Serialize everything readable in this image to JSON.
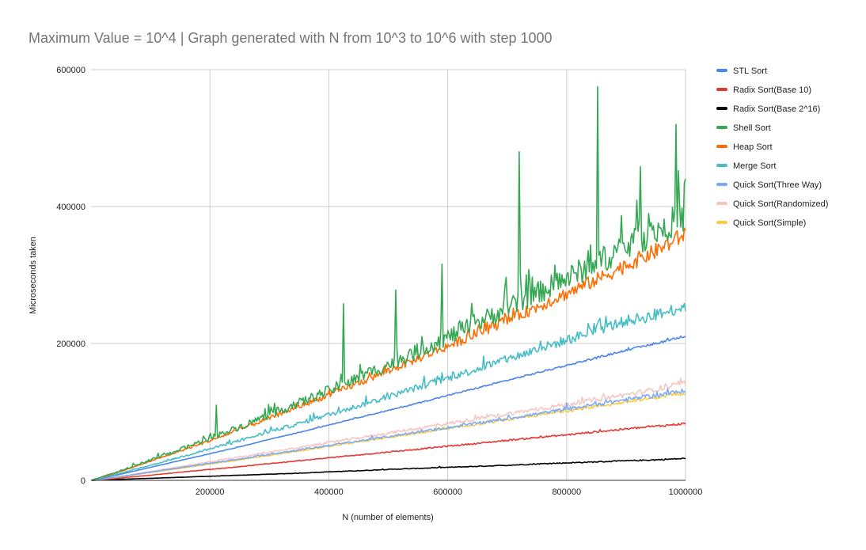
{
  "chart_data": {
    "type": "line",
    "title": "Maximum Value = 10^4      | Graph generated with N from 10^3 to 10^6 with step 1000",
    "xlabel": "N (number of elements)",
    "ylabel": "Microseconds taken",
    "xlim": [
      0,
      1000000
    ],
    "ylim": [
      0,
      600000
    ],
    "x_ticks": [
      200000,
      400000,
      600000,
      800000,
      1000000
    ],
    "x_tick_labels": [
      "200000",
      "400000",
      "600000",
      "800000",
      "1000000"
    ],
    "y_ticks": [
      0,
      200000,
      400000,
      600000
    ],
    "y_tick_labels": [
      "0",
      "200000",
      "400000",
      "600000"
    ],
    "grid": true,
    "legend_position": "right",
    "x": [
      1000,
      50000,
      100000,
      150000,
      200000,
      250000,
      300000,
      350000,
      400000,
      450000,
      500000,
      550000,
      600000,
      650000,
      700000,
      750000,
      800000,
      850000,
      900000,
      950000,
      1000000
    ],
    "series": [
      {
        "name": "STL Sort",
        "color": "#4a86e8",
        "values": [
          200,
          9000,
          19000,
          29000,
          39000,
          49000,
          60000,
          70000,
          81000,
          92000,
          102000,
          113000,
          124000,
          135000,
          146000,
          157000,
          168000,
          179000,
          190000,
          200000,
          211000
        ]
      },
      {
        "name": "Radix Sort(Base 10)",
        "color": "#e53935",
        "values": [
          100,
          3500,
          7500,
          12000,
          16000,
          20000,
          24500,
          28500,
          33000,
          37000,
          41500,
          45500,
          50000,
          54000,
          58500,
          62500,
          66500,
          71000,
          75000,
          79000,
          83000
        ]
      },
      {
        "name": "Radix Sort(Base 2^16)",
        "color": "#000000",
        "values": [
          50,
          1500,
          3000,
          4500,
          6000,
          7500,
          9000,
          10500,
          12500,
          14000,
          16000,
          17500,
          19000,
          20500,
          22000,
          24000,
          25500,
          27000,
          28500,
          30000,
          32000
        ]
      },
      {
        "name": "Shell Sort",
        "color": "#34a853",
        "values": [
          300,
          14000,
          30000,
          45000,
          62000,
          78000,
          96000,
          113000,
          131000,
          150000,
          169000,
          189000,
          209000,
          230000,
          252000,
          273000,
          295000,
          318000,
          341000,
          364000,
          387000
        ]
      },
      {
        "name": "Heap Sort",
        "color": "#ff6d01",
        "values": [
          300,
          13000,
          28000,
          43000,
          58000,
          74000,
          91000,
          108000,
          125000,
          142000,
          160000,
          178000,
          196000,
          215000,
          234000,
          253000,
          273000,
          293000,
          314000,
          335000,
          360000
        ]
      },
      {
        "name": "Merge Sort",
        "color": "#46bdc6",
        "values": [
          250,
          10500,
          22000,
          34000,
          46000,
          58000,
          71000,
          83000,
          96000,
          109000,
          122000,
          136000,
          149000,
          163000,
          177000,
          191000,
          205000,
          219000,
          233000,
          241000,
          255000
        ]
      },
      {
        "name": "Quick Sort(Three Way)",
        "color": "#7baaf7",
        "values": [
          150,
          5500,
          12000,
          18500,
          25000,
          31000,
          38000,
          44500,
          51000,
          57500,
          64000,
          70500,
          77000,
          83500,
          90000,
          97000,
          104000,
          111000,
          118000,
          124000,
          131000
        ]
      },
      {
        "name": "Quick Sort(Randomized)",
        "color": "#f4c7c3",
        "values": [
          150,
          6000,
          13000,
          20000,
          27000,
          34000,
          41000,
          48000,
          55000,
          62000,
          69000,
          76000,
          83000,
          90000,
          97000,
          104000,
          111000,
          118000,
          125000,
          133000,
          142000
        ]
      },
      {
        "name": "Quick Sort(Simple)",
        "color": "#fbcb43",
        "values": [
          150,
          5200,
          11500,
          17500,
          24000,
          30000,
          36500,
          43000,
          49500,
          56000,
          62500,
          69000,
          75500,
          82000,
          88500,
          95000,
          101500,
          108000,
          114500,
          121000,
          128000
        ]
      }
    ],
    "annotations": [
      {
        "series": "Shell Sort",
        "x": 210000,
        "y": 110000
      },
      {
        "series": "Shell Sort",
        "x": 425000,
        "y": 258000
      },
      {
        "series": "Shell Sort",
        "x": 512000,
        "y": 278000
      },
      {
        "series": "Shell Sort",
        "x": 590000,
        "y": 316000
      },
      {
        "series": "Shell Sort",
        "x": 720000,
        "y": 480000
      },
      {
        "series": "Shell Sort",
        "x": 852000,
        "y": 575000
      },
      {
        "series": "Shell Sort",
        "x": 925000,
        "y": 458000
      },
      {
        "series": "Shell Sort",
        "x": 985000,
        "y": 520000
      },
      {
        "series": "Shell Sort",
        "x": 998000,
        "y": 435000
      }
    ]
  }
}
